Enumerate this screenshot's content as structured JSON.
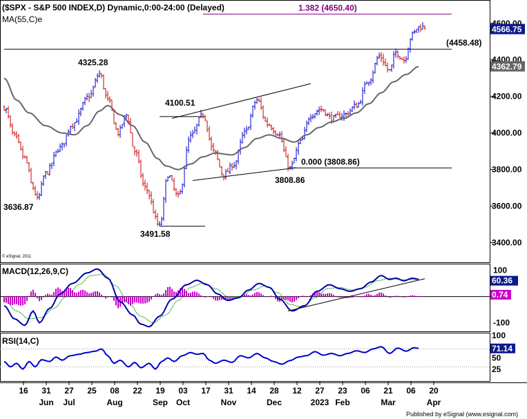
{
  "header": {
    "title": "($SPX - S&P 500 INDEX,D) Dynamic,0:00-24:00 (Delayed)",
    "ma_label": "MA(55,C)e"
  },
  "footer": {
    "copyright": "© eSignal, 2011",
    "published": "Published by eSignal (www.esignal.com)"
  },
  "colors": {
    "up": "#0000cc",
    "down": "#cc0000",
    "ma": "#666666",
    "fib": "#800080",
    "macd": "#0000aa",
    "macd_signal": "#009900",
    "histogram": "#cc00cc",
    "rsi": "#0000cc",
    "price_tag_bg": "#0b1a8c"
  },
  "chart_data": [
    {
      "type": "candlestick",
      "panel": "price",
      "title": "($SPX - S&P 500 INDEX,D) Dynamic,0:00-24:00 (Delayed)",
      "ylim": [
        3300,
        4720
      ],
      "yticks": [
        3400,
        3600,
        3800,
        4000,
        4200,
        4400,
        4600
      ],
      "ytick_labels": [
        "3400.00",
        "3600.00",
        "3800.00",
        "4000.00",
        "4200.00",
        "4400.00",
        "4600.00"
      ],
      "last_price": "4566.75",
      "ma_value": "4362.79",
      "ma_label": "MA(55,C)e",
      "anchors": [
        {
          "i": 0,
          "v": 4140
        },
        {
          "i": 5,
          "v": 3980
        },
        {
          "i": 10,
          "v": 3860
        },
        {
          "i": 14,
          "v": 3700
        },
        {
          "i": 16,
          "v": 3636.87
        },
        {
          "i": 20,
          "v": 3780
        },
        {
          "i": 27,
          "v": 3920
        },
        {
          "i": 33,
          "v": 4050
        },
        {
          "i": 41,
          "v": 4200
        },
        {
          "i": 46,
          "v": 4325.28
        },
        {
          "i": 50,
          "v": 4180
        },
        {
          "i": 55,
          "v": 4000
        },
        {
          "i": 59,
          "v": 4100
        },
        {
          "i": 63,
          "v": 3900
        },
        {
          "i": 68,
          "v": 3700
        },
        {
          "i": 75,
          "v": 3491.58
        },
        {
          "i": 79,
          "v": 3770
        },
        {
          "i": 84,
          "v": 3650
        },
        {
          "i": 90,
          "v": 3980
        },
        {
          "i": 96,
          "v": 4100.51
        },
        {
          "i": 101,
          "v": 3900
        },
        {
          "i": 106,
          "v": 3770
        },
        {
          "i": 111,
          "v": 3830
        },
        {
          "i": 116,
          "v": 4000
        },
        {
          "i": 122,
          "v": 4180
        },
        {
          "i": 127,
          "v": 4050
        },
        {
          "i": 132,
          "v": 4000
        },
        {
          "i": 138,
          "v": 3808.86
        },
        {
          "i": 143,
          "v": 3950
        },
        {
          "i": 148,
          "v": 4100
        },
        {
          "i": 153,
          "v": 4130
        },
        {
          "i": 158,
          "v": 4080
        },
        {
          "i": 164,
          "v": 4100
        },
        {
          "i": 170,
          "v": 4150
        },
        {
          "i": 176,
          "v": 4290
        },
        {
          "i": 181,
          "v": 4420
        },
        {
          "i": 186,
          "v": 4340
        },
        {
          "i": 189,
          "v": 4440
        },
        {
          "i": 193,
          "v": 4400
        },
        {
          "i": 197,
          "v": 4540
        },
        {
          "i": 200,
          "v": 4580
        }
      ],
      "ma_points": [
        {
          "i": 0,
          "v": 4300
        },
        {
          "i": 6,
          "v": 4180
        },
        {
          "i": 12,
          "v": 4110
        },
        {
          "i": 20,
          "v": 4040
        },
        {
          "i": 28,
          "v": 4000
        },
        {
          "i": 34,
          "v": 3990
        },
        {
          "i": 40,
          "v": 4040
        },
        {
          "i": 46,
          "v": 4120
        },
        {
          "i": 50,
          "v": 4150
        },
        {
          "i": 56,
          "v": 4100
        },
        {
          "i": 62,
          "v": 4040
        },
        {
          "i": 68,
          "v": 3950
        },
        {
          "i": 74,
          "v": 3860
        },
        {
          "i": 78,
          "v": 3820
        },
        {
          "i": 84,
          "v": 3800
        },
        {
          "i": 90,
          "v": 3830
        },
        {
          "i": 96,
          "v": 3870
        },
        {
          "i": 102,
          "v": 3890
        },
        {
          "i": 110,
          "v": 3880
        },
        {
          "i": 116,
          "v": 3920
        },
        {
          "i": 122,
          "v": 3970
        },
        {
          "i": 128,
          "v": 3990
        },
        {
          "i": 134,
          "v": 3970
        },
        {
          "i": 140,
          "v": 3950
        },
        {
          "i": 146,
          "v": 3990
        },
        {
          "i": 152,
          "v": 4030
        },
        {
          "i": 158,
          "v": 4060
        },
        {
          "i": 164,
          "v": 4080
        },
        {
          "i": 170,
          "v": 4110
        },
        {
          "i": 176,
          "v": 4160
        },
        {
          "i": 182,
          "v": 4220
        },
        {
          "i": 188,
          "v": 4280
        },
        {
          "i": 194,
          "v": 4320
        },
        {
          "i": 200,
          "v": 4362.79
        }
      ],
      "hlines": [
        {
          "value": 4650.4,
          "label": "1.382 (4650.40)",
          "color": "#800080",
          "from_i": 96,
          "to_i": 216
        },
        {
          "value": 4458.48,
          "label": "(4458.48)",
          "color": "#000000",
          "from_i": 0,
          "to_i": 216
        },
        {
          "value": 3808.86,
          "label": "0.000 (3808.86)",
          "color": "#000000",
          "from_i": 139,
          "to_i": 216
        },
        {
          "value": 4090,
          "label": "",
          "color": "#000000",
          "from_i": 75,
          "to_i": 97
        },
        {
          "value": 3490,
          "label": "",
          "color": "#000000",
          "from_i": 75,
          "to_i": 97
        }
      ],
      "trendlines": [
        {
          "i1": 81,
          "v1": 4080,
          "i2": 148,
          "v2": 4270
        },
        {
          "i1": 91,
          "v1": 3740,
          "i2": 141,
          "v2": 3810
        }
      ],
      "annotations": [
        {
          "text": "4325.28",
          "i": 43,
          "v": 4370
        },
        {
          "text": "4100.51",
          "i": 85,
          "v": 4150
        },
        {
          "text": "3636.87",
          "i": 7,
          "v": 3580
        },
        {
          "text": "3491.58",
          "i": 73,
          "v": 3432
        },
        {
          "text": "3808.86",
          "i": 138,
          "v": 3727
        }
      ],
      "xticks": [
        {
          "i": 2,
          "label": "16",
          "month": ""
        },
        {
          "i": 13,
          "label": "31",
          "month": "Jun"
        },
        {
          "i": 24,
          "label": "27",
          "month": "Jul"
        },
        {
          "i": 35,
          "label": "25",
          "month": ""
        },
        {
          "i": 46,
          "label": "08",
          "month": "Aug"
        },
        {
          "i": 57,
          "label": "22",
          "month": ""
        },
        {
          "i": 68,
          "label": "19",
          "month": "Sep"
        },
        {
          "i": 79,
          "label": "03",
          "month": "Oct"
        },
        {
          "i": 90,
          "label": "17",
          "month": ""
        },
        {
          "i": 101,
          "label": "31",
          "month": "Nov"
        },
        {
          "i": 112,
          "label": "14",
          "month": ""
        },
        {
          "i": 123,
          "label": "28",
          "month": "Dec"
        },
        {
          "i": 134,
          "label": "12",
          "month": ""
        },
        {
          "i": 145,
          "label": "27",
          "month": "2023"
        },
        {
          "i": 156,
          "label": "23",
          "month": "Feb"
        },
        {
          "i": 167,
          "label": "06",
          "month": ""
        },
        {
          "i": 178,
          "label": "21",
          "month": "Mar"
        },
        {
          "i": 189,
          "label": "06",
          "month": ""
        },
        {
          "i": 200,
          "label": "20",
          "month": "Apr"
        }
      ]
    },
    {
      "type": "line",
      "panel": "macd",
      "title": "MACD(12,26,9,C)",
      "ylim": [
        -130,
        120
      ],
      "yticks": [
        100,
        -100
      ],
      "ytick_labels": [
        "100",
        "-100"
      ],
      "zero_line": 0,
      "macd_value": "60.36",
      "hist_value": "0.74",
      "macd_points": [
        {
          "i": 0,
          "v": -35
        },
        {
          "i": 5,
          "v": -85
        },
        {
          "i": 10,
          "v": -110
        },
        {
          "i": 14,
          "v": -55
        },
        {
          "i": 17,
          "v": -100
        },
        {
          "i": 22,
          "v": -45
        },
        {
          "i": 27,
          "v": 10
        },
        {
          "i": 33,
          "v": 50
        },
        {
          "i": 40,
          "v": 90
        },
        {
          "i": 45,
          "v": 105
        },
        {
          "i": 50,
          "v": 70
        },
        {
          "i": 56,
          "v": -20
        },
        {
          "i": 62,
          "v": -70
        },
        {
          "i": 66,
          "v": -105
        },
        {
          "i": 70,
          "v": -115
        },
        {
          "i": 75,
          "v": -75
        },
        {
          "i": 81,
          "v": -10
        },
        {
          "i": 88,
          "v": 45
        },
        {
          "i": 93,
          "v": 62
        },
        {
          "i": 98,
          "v": 45
        },
        {
          "i": 103,
          "v": 10
        },
        {
          "i": 108,
          "v": -15
        },
        {
          "i": 113,
          "v": -5
        },
        {
          "i": 118,
          "v": 25
        },
        {
          "i": 123,
          "v": 50
        },
        {
          "i": 128,
          "v": 35
        },
        {
          "i": 133,
          "v": -10
        },
        {
          "i": 139,
          "v": -55
        },
        {
          "i": 145,
          "v": -35
        },
        {
          "i": 151,
          "v": 20
        },
        {
          "i": 157,
          "v": 45
        },
        {
          "i": 162,
          "v": 30
        },
        {
          "i": 167,
          "v": 20
        },
        {
          "i": 172,
          "v": 30
        },
        {
          "i": 177,
          "v": 55
        },
        {
          "i": 182,
          "v": 80
        },
        {
          "i": 186,
          "v": 65
        },
        {
          "i": 189,
          "v": 70
        },
        {
          "i": 193,
          "v": 60
        },
        {
          "i": 197,
          "v": 70
        },
        {
          "i": 200,
          "v": 66
        }
      ],
      "signal_points": [
        {
          "i": 0,
          "v": -10
        },
        {
          "i": 6,
          "v": -55
        },
        {
          "i": 12,
          "v": -85
        },
        {
          "i": 18,
          "v": -80
        },
        {
          "i": 24,
          "v": -45
        },
        {
          "i": 30,
          "v": 0
        },
        {
          "i": 36,
          "v": 45
        },
        {
          "i": 42,
          "v": 80
        },
        {
          "i": 48,
          "v": 85
        },
        {
          "i": 54,
          "v": 40
        },
        {
          "i": 60,
          "v": -25
        },
        {
          "i": 66,
          "v": -75
        },
        {
          "i": 72,
          "v": -100
        },
        {
          "i": 78,
          "v": -70
        },
        {
          "i": 84,
          "v": -15
        },
        {
          "i": 90,
          "v": 35
        },
        {
          "i": 96,
          "v": 52
        },
        {
          "i": 102,
          "v": 30
        },
        {
          "i": 108,
          "v": 0
        },
        {
          "i": 114,
          "v": 0
        },
        {
          "i": 120,
          "v": 25
        },
        {
          "i": 126,
          "v": 40
        },
        {
          "i": 132,
          "v": 15
        },
        {
          "i": 138,
          "v": -30
        },
        {
          "i": 144,
          "v": -40
        },
        {
          "i": 150,
          "v": -5
        },
        {
          "i": 156,
          "v": 30
        },
        {
          "i": 162,
          "v": 35
        },
        {
          "i": 168,
          "v": 25
        },
        {
          "i": 174,
          "v": 35
        },
        {
          "i": 180,
          "v": 60
        },
        {
          "i": 186,
          "v": 70
        },
        {
          "i": 192,
          "v": 64
        },
        {
          "i": 200,
          "v": 65
        }
      ],
      "trendline": {
        "i1": 137,
        "v1": -55,
        "i2": 203,
        "v2": 68
      }
    },
    {
      "type": "line",
      "panel": "rsi",
      "title": "RSI(14,C)",
      "ylim": [
        0,
        100
      ],
      "yticks": [
        100,
        50,
        25
      ],
      "ytick_labels": [
        "100",
        "50",
        "25"
      ],
      "levels": [
        70,
        30
      ],
      "rsi_value": "71.14",
      "rsi_points": [
        {
          "i": 0,
          "v": 42
        },
        {
          "i": 3,
          "v": 30
        },
        {
          "i": 6,
          "v": 38
        },
        {
          "i": 9,
          "v": 25
        },
        {
          "i": 12,
          "v": 42
        },
        {
          "i": 15,
          "v": 30
        },
        {
          "i": 18,
          "v": 46
        },
        {
          "i": 22,
          "v": 42
        },
        {
          "i": 25,
          "v": 52
        },
        {
          "i": 28,
          "v": 45
        },
        {
          "i": 32,
          "v": 55
        },
        {
          "i": 36,
          "v": 58
        },
        {
          "i": 40,
          "v": 62
        },
        {
          "i": 44,
          "v": 65
        },
        {
          "i": 47,
          "v": 70
        },
        {
          "i": 50,
          "v": 55
        },
        {
          "i": 53,
          "v": 38
        },
        {
          "i": 56,
          "v": 45
        },
        {
          "i": 60,
          "v": 30
        },
        {
          "i": 63,
          "v": 40
        },
        {
          "i": 66,
          "v": 28
        },
        {
          "i": 70,
          "v": 38
        },
        {
          "i": 73,
          "v": 25
        },
        {
          "i": 76,
          "v": 42
        },
        {
          "i": 79,
          "v": 50
        },
        {
          "i": 82,
          "v": 42
        },
        {
          "i": 86,
          "v": 55
        },
        {
          "i": 90,
          "v": 62
        },
        {
          "i": 93,
          "v": 58
        },
        {
          "i": 96,
          "v": 60
        },
        {
          "i": 99,
          "v": 45
        },
        {
          "i": 102,
          "v": 38
        },
        {
          "i": 106,
          "v": 45
        },
        {
          "i": 110,
          "v": 40
        },
        {
          "i": 114,
          "v": 55
        },
        {
          "i": 118,
          "v": 50
        },
        {
          "i": 122,
          "v": 60
        },
        {
          "i": 126,
          "v": 50
        },
        {
          "i": 130,
          "v": 42
        },
        {
          "i": 134,
          "v": 36
        },
        {
          "i": 138,
          "v": 44
        },
        {
          "i": 142,
          "v": 52
        },
        {
          "i": 146,
          "v": 55
        },
        {
          "i": 150,
          "v": 64
        },
        {
          "i": 154,
          "v": 56
        },
        {
          "i": 158,
          "v": 60
        },
        {
          "i": 162,
          "v": 55
        },
        {
          "i": 166,
          "v": 60
        },
        {
          "i": 170,
          "v": 66
        },
        {
          "i": 174,
          "v": 62
        },
        {
          "i": 178,
          "v": 70
        },
        {
          "i": 182,
          "v": 75
        },
        {
          "i": 186,
          "v": 60
        },
        {
          "i": 190,
          "v": 72
        },
        {
          "i": 194,
          "v": 65
        },
        {
          "i": 198,
          "v": 73
        },
        {
          "i": 200,
          "v": 71.14
        }
      ]
    }
  ]
}
